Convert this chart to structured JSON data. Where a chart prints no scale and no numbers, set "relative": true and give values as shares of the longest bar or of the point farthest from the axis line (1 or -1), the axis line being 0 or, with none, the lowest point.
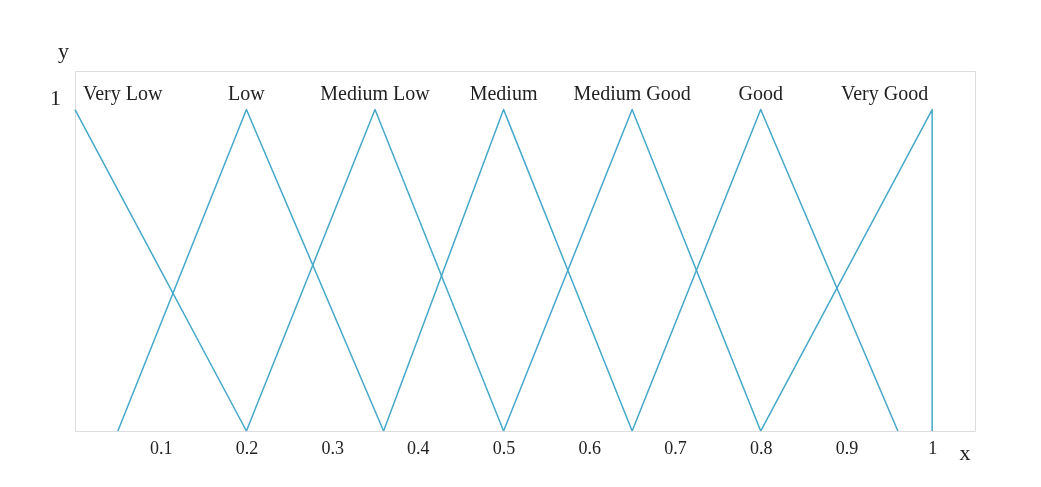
{
  "chart_data": {
    "type": "line",
    "relative": true,
    "xlabel": "x",
    "ylabel": "y",
    "annotations": [
      "1"
    ],
    "xlim": [
      0,
      1.05
    ],
    "xticks": [
      0.1,
      0.2,
      0.3,
      0.4,
      0.5,
      0.6,
      0.7,
      0.8,
      0.9,
      1
    ],
    "grid": false,
    "marker": "none",
    "line_style": "solid",
    "series": [
      {
        "name": "Very Low",
        "color": "#45a8c8",
        "x": [
          0,
          0.2
        ],
        "values": [
          1,
          0
        ]
      },
      {
        "name": "Low",
        "color": "#45a8c8",
        "x": [
          0.05,
          0.2,
          0.36
        ],
        "values": [
          0,
          1,
          0
        ]
      },
      {
        "name": "Medium Low",
        "color": "#45a8c8",
        "x": [
          0.2,
          0.35,
          0.5
        ],
        "values": [
          0,
          1,
          0
        ]
      },
      {
        "name": "Medium",
        "color": "#45a8c8",
        "x": [
          0.36,
          0.5,
          0.65
        ],
        "values": [
          0,
          1,
          0
        ]
      },
      {
        "name": "Medium Good",
        "color": "#45a8c8",
        "x": [
          0.5,
          0.65,
          0.8
        ],
        "values": [
          0,
          1,
          0
        ]
      },
      {
        "name": "Good",
        "color": "#45a8c8",
        "x": [
          0.65,
          0.8,
          0.96
        ],
        "values": [
          0,
          1,
          0
        ]
      },
      {
        "name": "Very Good",
        "color": "#45a8c8",
        "x": [
          0.8,
          1,
          1
        ],
        "values": [
          0,
          1,
          0
        ]
      }
    ]
  }
}
